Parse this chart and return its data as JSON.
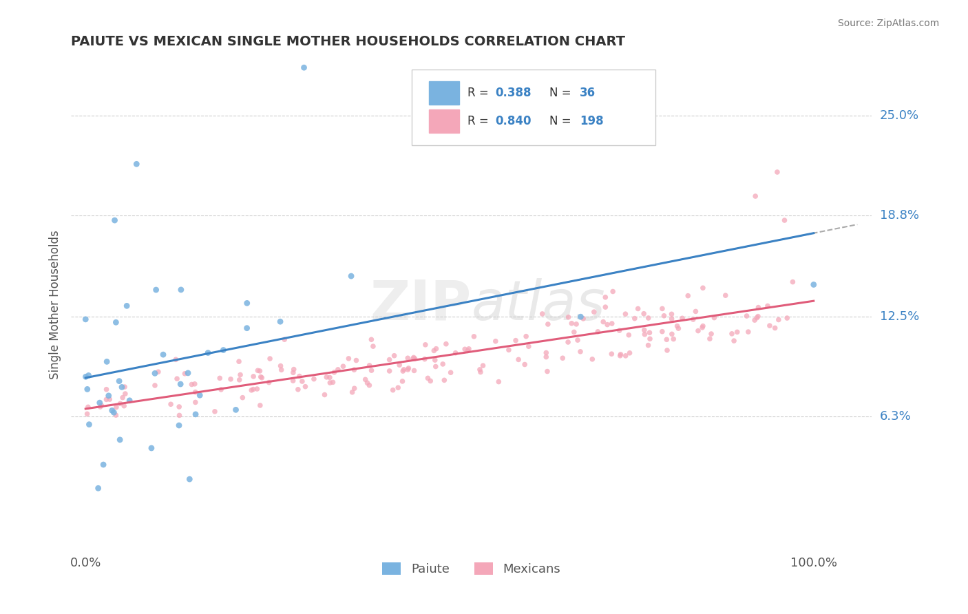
{
  "title": "PAIUTE VS MEXICAN SINGLE MOTHER HOUSEHOLDS CORRELATION CHART",
  "source": "Source: ZipAtlas.com",
  "ylabel": "Single Mother Households",
  "yticks": [
    0.063,
    0.125,
    0.188,
    0.25
  ],
  "ytick_labels": [
    "6.3%",
    "12.5%",
    "18.8%",
    "25.0%"
  ],
  "xlim": [
    -0.02,
    1.08
  ],
  "ylim": [
    -0.02,
    0.285
  ],
  "paiute_color": "#7ab3e0",
  "mexican_color": "#f4a7b9",
  "paiute_line_color": "#3b82c4",
  "mexican_line_color": "#e05c7a",
  "dashed_line_color": "#aaaaaa",
  "paiute_R": 0.388,
  "paiute_N": 36,
  "mexican_R": 0.84,
  "mexican_N": 198,
  "background_color": "#ffffff",
  "grid_color": "#cccccc",
  "watermark_zip": "ZIP",
  "watermark_atlas": "atlas"
}
